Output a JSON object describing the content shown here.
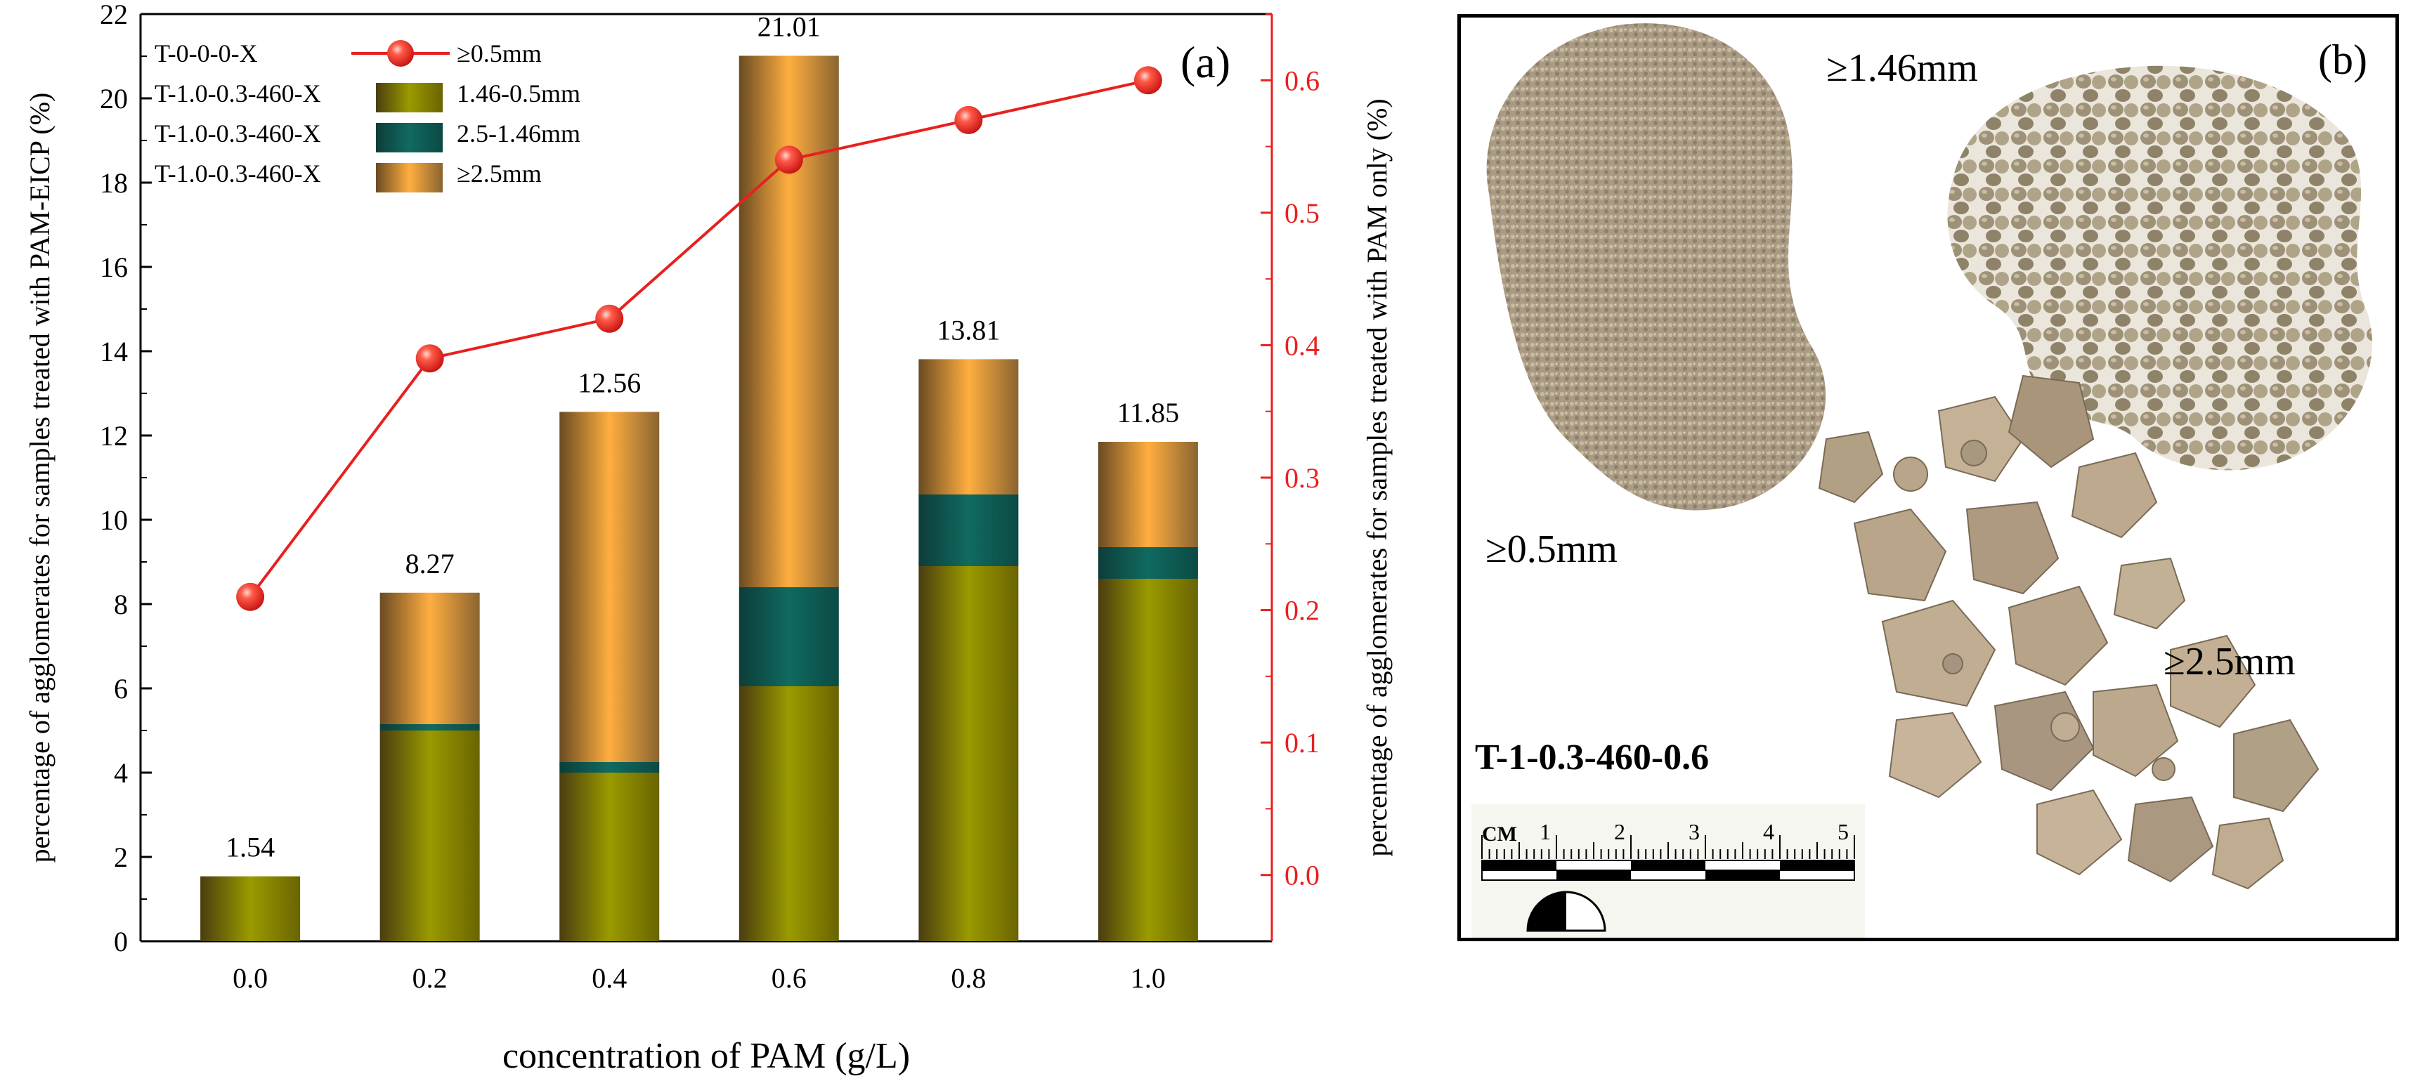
{
  "chart_data": {
    "type": "bar",
    "panel_label": "(a)",
    "categories": [
      "0.0",
      "0.2",
      "0.4",
      "0.6",
      "0.8",
      "1.0"
    ],
    "series": [
      {
        "name": "1.46-0.5mm",
        "legend_group": "T-1.0-0.3-460-X",
        "color": "#8a8a00",
        "values": [
          1.54,
          5.0,
          4.0,
          6.05,
          8.9,
          8.6
        ]
      },
      {
        "name": "2.5-1.46mm",
        "legend_group": "T-1.0-0.3-460-X",
        "color": "#0e5a52",
        "values": [
          0,
          0.15,
          0.25,
          2.35,
          1.7,
          0.75
        ]
      },
      {
        "name": "≥2.5mm",
        "legend_group": "T-1.0-0.3-460-X",
        "color": "#f2a83c",
        "values": [
          0,
          3.12,
          8.31,
          12.61,
          3.21,
          2.5
        ]
      }
    ],
    "totals": [
      1.54,
      8.27,
      12.56,
      21.01,
      13.81,
      11.85
    ],
    "total_labels": [
      "1.54",
      "8.27",
      "12.56",
      "21.01",
      "13.81",
      "11.85"
    ],
    "line_series": {
      "name": "≥0.5mm",
      "legend_group": "T-0-0-0-X",
      "color": "#e8201e",
      "axis": "right",
      "values": [
        0.21,
        0.39,
        0.42,
        0.54,
        0.57,
        0.6
      ]
    },
    "xlabel": "concentration of PAM (g/L)",
    "ylabel": "percentage of agglomerates for samples treated with PAM-EICP (%)",
    "ylabel_right": "percentage of agglomerates for samples treated with PAM only (%)",
    "ylim": [
      0,
      22
    ],
    "yticks": [
      "0",
      "2",
      "4",
      "6",
      "8",
      "10",
      "12",
      "14",
      "16",
      "18",
      "20",
      "22"
    ],
    "ylim_right": [
      -0.05,
      0.65
    ],
    "yticks_right": [
      "0.0",
      "0.1",
      "0.2",
      "0.3",
      "0.4",
      "0.5",
      "0.6"
    ],
    "legend_position": "top-left",
    "legend": [
      {
        "group": "T-0-0-0-X",
        "name": "≥0.5mm"
      },
      {
        "group": "T-1.0-0.3-460-X",
        "name": "1.46-0.5mm"
      },
      {
        "group": "T-1.0-0.3-460-X",
        "name": "2.5-1.46mm"
      },
      {
        "group": "T-1.0-0.3-460-X",
        "name": "≥2.5mm"
      }
    ]
  },
  "photo": {
    "panel_label": "(b)",
    "labels": {
      "fine": "≥0.5mm",
      "medium": "≥1.46mm",
      "coarse": "≥2.5mm",
      "sample_id": "T-1-0.3-460-0.6"
    },
    "ruler": {
      "unit": "CM",
      "numbers": [
        "1",
        "2",
        "3",
        "4",
        "5"
      ]
    },
    "colors": {
      "aggregate": "#b8a48a",
      "aggregate_dark": "#8c7a64",
      "pellet": "#a59a80"
    }
  }
}
